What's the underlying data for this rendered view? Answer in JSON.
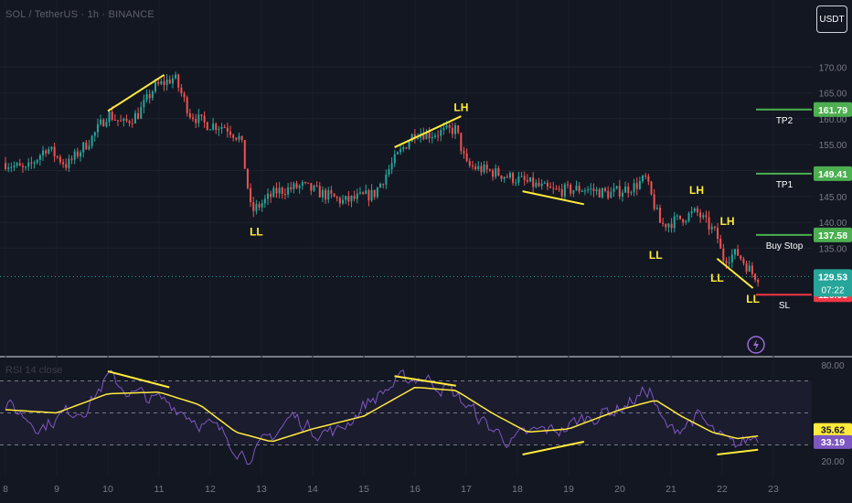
{
  "header": {
    "symbol_title": "SOL / TetherUS · 1h · BINANCE",
    "currency_button": "USDT"
  },
  "rsi_title": "RSI 14 close",
  "colors": {
    "background": "#131722",
    "up": "#26a69a",
    "down": "#ef5350",
    "annotation": "#ffeb3b",
    "target": "#4caf50",
    "stop": "#f23645",
    "rsi_line": "#7e57c2",
    "rsi_ma": "#ffeb3b",
    "label_text": "#ffffff"
  },
  "chart_data": [
    {
      "type": "candlestick",
      "title": "SOL / TetherUS · 1h · BINANCE",
      "x_ticks": [
        "8",
        "9",
        "10",
        "11",
        "12",
        "13",
        "14",
        "15",
        "16",
        "17",
        "18",
        "19",
        "20",
        "21",
        "22",
        "23"
      ],
      "y_ticks": [
        135,
        140,
        145,
        150,
        155,
        160,
        165,
        170
      ],
      "ylim": [
        119,
        175
      ],
      "anchor_closes": [
        [
          8.0,
          151.5
        ],
        [
          8.4,
          150.0
        ],
        [
          8.8,
          154.5
        ],
        [
          9.2,
          151.0
        ],
        [
          9.7,
          156.5
        ],
        [
          10.0,
          161.0
        ],
        [
          10.3,
          159.0
        ],
        [
          10.6,
          161.0
        ],
        [
          10.9,
          166.0
        ],
        [
          11.3,
          168.0
        ],
        [
          11.6,
          161.0
        ],
        [
          11.9,
          159.0
        ],
        [
          12.3,
          158.5
        ],
        [
          12.6,
          156.0
        ],
        [
          12.8,
          142.0
        ],
        [
          13.3,
          146.0
        ],
        [
          13.8,
          147.0
        ],
        [
          14.2,
          145.5
        ],
        [
          14.6,
          144.0
        ],
        [
          15.2,
          145.5
        ],
        [
          15.6,
          152.0
        ],
        [
          16.0,
          157.5
        ],
        [
          16.3,
          157.0
        ],
        [
          16.8,
          158.0
        ],
        [
          17.0,
          151.0
        ],
        [
          17.6,
          149.5
        ],
        [
          18.1,
          148.0
        ],
        [
          18.7,
          146.0
        ],
        [
          19.3,
          146.5
        ],
        [
          19.8,
          145.5
        ],
        [
          20.3,
          147.0
        ],
        [
          20.5,
          148.5
        ],
        [
          20.8,
          139.5
        ],
        [
          21.0,
          140.0
        ],
        [
          21.5,
          142.0
        ],
        [
          21.9,
          137.5
        ],
        [
          22.0,
          133.0
        ],
        [
          22.3,
          134.0
        ],
        [
          22.6,
          130.0
        ],
        [
          22.7,
          129.5
        ]
      ],
      "current_price": 129.53,
      "countdown": "07:22",
      "levels": [
        {
          "name": "TP2",
          "price": 161.79,
          "role": "target"
        },
        {
          "name": "TP1",
          "price": 149.41,
          "role": "target"
        },
        {
          "name": "Buy Stop",
          "price": 137.58,
          "role": "target"
        },
        {
          "name": "SL",
          "price": 126.03,
          "role": "stop"
        }
      ],
      "swing_labels": [
        {
          "text": "LL",
          "x": 12.9,
          "price": 137.5
        },
        {
          "text": "LH",
          "x": 16.9,
          "price": 161.5
        },
        {
          "text": "LL",
          "x": 20.7,
          "price": 133.0
        },
        {
          "text": "LH",
          "x": 21.5,
          "price": 145.5
        },
        {
          "text": "LH",
          "x": 22.1,
          "price": 139.5
        },
        {
          "text": "LL",
          "x": 21.9,
          "price": 128.5
        },
        {
          "text": "LL",
          "x": 22.6,
          "price": 124.5
        }
      ],
      "trendlines": [
        {
          "x1": 10.0,
          "p1": 161.5,
          "x2": 11.1,
          "p2": 168.5
        },
        {
          "x1": 15.6,
          "p1": 154.5,
          "x2": 16.9,
          "p2": 160.5
        },
        {
          "x1": 18.1,
          "p1": 146.0,
          "x2": 19.3,
          "p2": 143.5
        },
        {
          "x1": 21.9,
          "p1": 133.0,
          "x2": 22.6,
          "p2": 127.3
        }
      ]
    },
    {
      "type": "line",
      "title": "RSI 14 close",
      "y_ticks": [
        20.0,
        80.0
      ],
      "ylim": [
        20,
        80
      ],
      "bands": [
        70,
        50,
        30
      ],
      "anchors": [
        [
          8.0,
          55
        ],
        [
          8.7,
          42
        ],
        [
          9.2,
          50
        ],
        [
          9.6,
          55
        ],
        [
          10.0,
          72
        ],
        [
          10.5,
          62
        ],
        [
          10.9,
          58
        ],
        [
          11.3,
          55
        ],
        [
          11.8,
          45
        ],
        [
          12.3,
          35
        ],
        [
          12.8,
          22
        ],
        [
          13.2,
          35
        ],
        [
          13.6,
          48
        ],
        [
          14.0,
          40
        ],
        [
          14.5,
          38
        ],
        [
          15.0,
          55
        ],
        [
          15.6,
          68
        ],
        [
          16.1,
          73
        ],
        [
          16.6,
          66
        ],
        [
          17.0,
          55
        ],
        [
          17.4,
          42
        ],
        [
          17.9,
          32
        ],
        [
          18.4,
          38
        ],
        [
          18.9,
          40
        ],
        [
          19.4,
          48
        ],
        [
          19.9,
          52
        ],
        [
          20.2,
          57
        ],
        [
          20.6,
          65
        ],
        [
          20.8,
          45
        ],
        [
          21.0,
          38
        ],
        [
          21.5,
          48
        ],
        [
          21.9,
          35
        ],
        [
          22.2,
          28
        ],
        [
          22.5,
          33
        ],
        [
          22.7,
          36
        ]
      ],
      "ma_anchors": [
        [
          8.0,
          52
        ],
        [
          9.0,
          50
        ],
        [
          10.0,
          62
        ],
        [
          11.0,
          63
        ],
        [
          11.8,
          55
        ],
        [
          12.5,
          38
        ],
        [
          13.2,
          32
        ],
        [
          14.0,
          40
        ],
        [
          15.0,
          48
        ],
        [
          16.0,
          66
        ],
        [
          16.8,
          64
        ],
        [
          17.5,
          50
        ],
        [
          18.2,
          38
        ],
        [
          19.0,
          40
        ],
        [
          20.0,
          52
        ],
        [
          20.7,
          58
        ],
        [
          21.2,
          48
        ],
        [
          21.8,
          38
        ],
        [
          22.3,
          34
        ],
        [
          22.7,
          35.6
        ]
      ],
      "rsi_value": 33.19,
      "ma_value": 35.62,
      "trendlines": [
        {
          "x1": 10.0,
          "p1": 76,
          "x2": 11.2,
          "p2": 66
        },
        {
          "x1": 15.6,
          "p1": 73,
          "x2": 16.8,
          "p2": 67
        },
        {
          "x1": 18.1,
          "p1": 24,
          "x2": 19.3,
          "p2": 32
        },
        {
          "x1": 21.9,
          "p1": 24,
          "x2": 22.7,
          "p2": 27
        }
      ]
    }
  ]
}
